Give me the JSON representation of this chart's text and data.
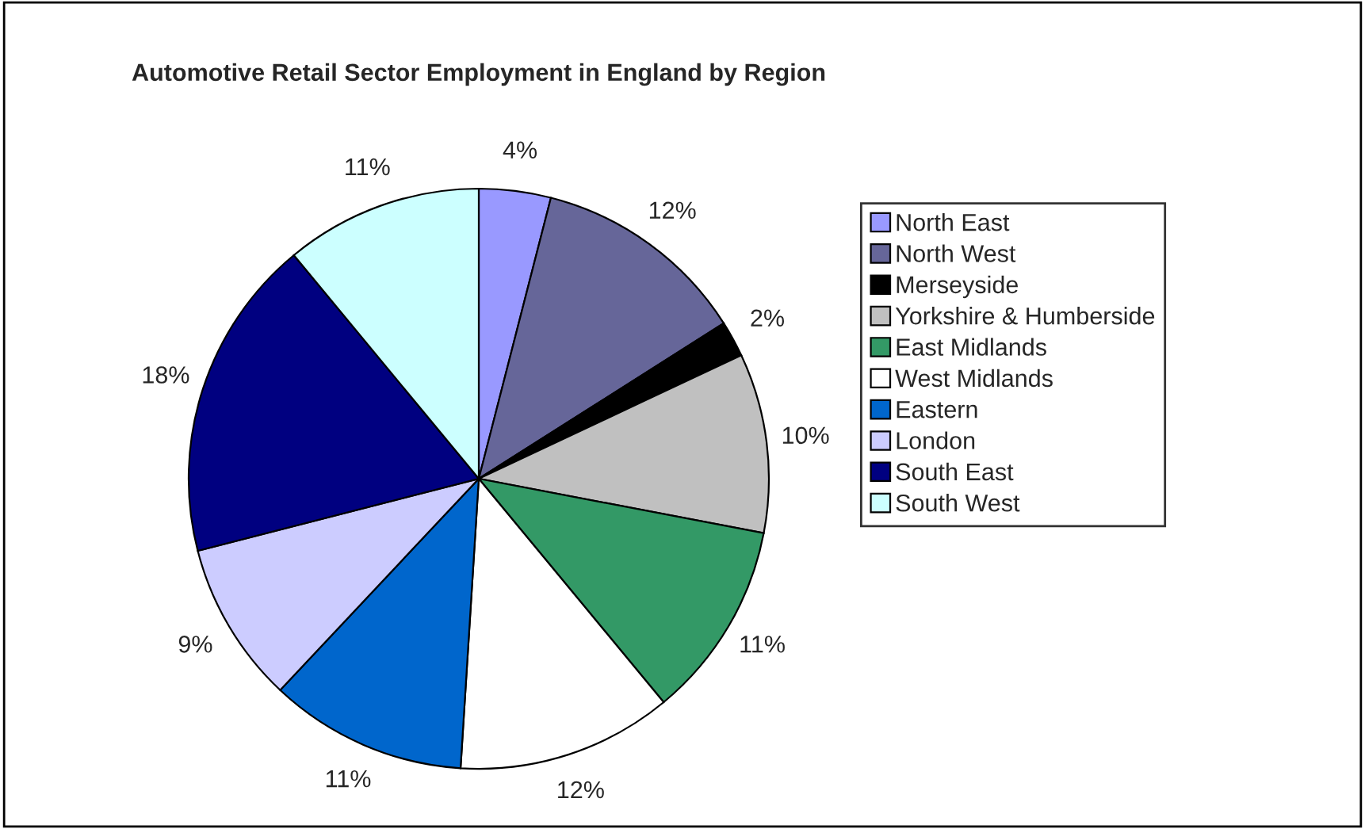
{
  "chart_data": {
    "type": "pie",
    "title": "Automotive Retail Sector Employment in England by Region",
    "categories": [
      "North East",
      "North West",
      "Merseyside",
      "Yorkshire & Humberside",
      "East Midlands",
      "West Midlands",
      "Eastern",
      "London",
      "South East",
      "South West"
    ],
    "values": [
      4,
      12,
      2,
      10,
      11,
      12,
      11,
      9,
      18,
      11
    ],
    "value_labels": [
      "4%",
      "12%",
      "2%",
      "10%",
      "11%",
      "12%",
      "11%",
      "9%",
      "18%",
      "11%"
    ],
    "colors": [
      "#9999ff",
      "#666699",
      "#000000",
      "#c0c0c0",
      "#339966",
      "#ffffff",
      "#0066cc",
      "#ccccff",
      "#000080",
      "#ccffff"
    ],
    "legend": "right"
  }
}
